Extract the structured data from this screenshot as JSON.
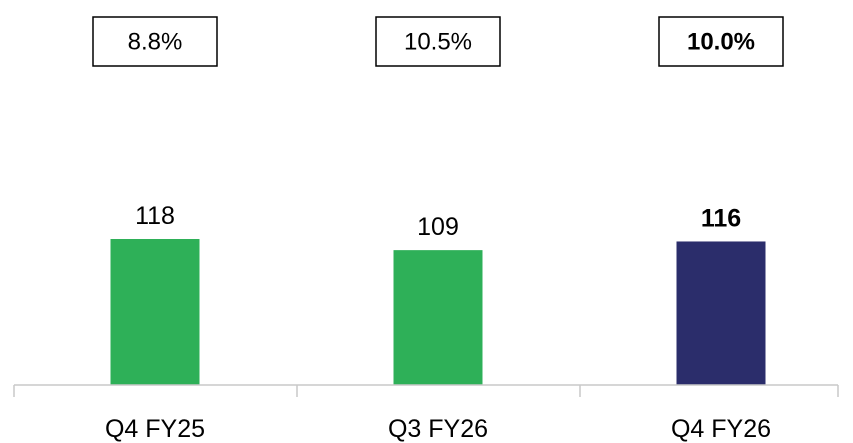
{
  "chart_data": {
    "type": "bar",
    "categories": [
      "Q4 FY25",
      "Q3 FY26",
      "Q4 FY26"
    ],
    "values": [
      118,
      109,
      116
    ],
    "value_labels": [
      "118",
      "109",
      "116"
    ],
    "percent_labels": [
      "8.8%",
      "10.5%",
      "10.0%"
    ],
    "highlighted_index": 2,
    "colors": [
      "#2eb058",
      "#2eb058",
      "#2b2d6b"
    ],
    "title": "",
    "xlabel": "",
    "ylabel": "",
    "ylim": [
      0,
      140
    ],
    "grid": false,
    "legend": "none"
  }
}
